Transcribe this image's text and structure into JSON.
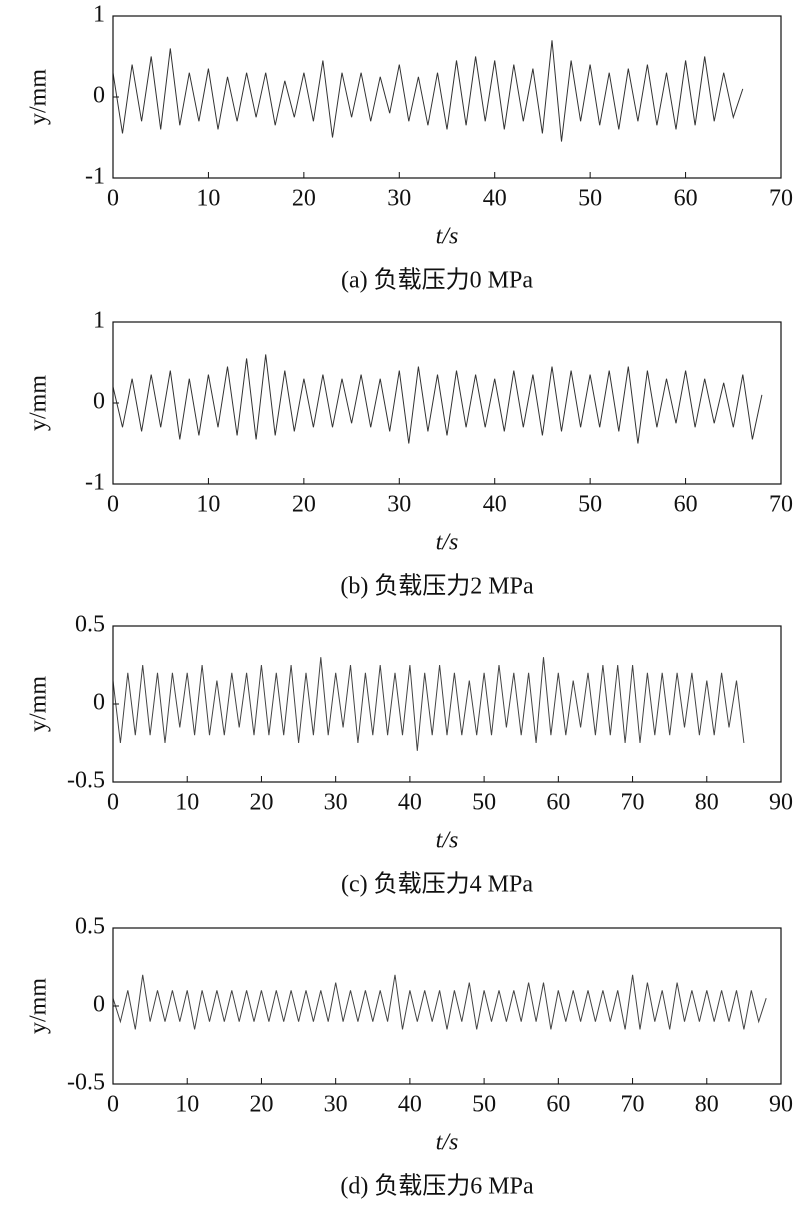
{
  "chart_data": [
    {
      "type": "line",
      "caption": "(a) 负载压力0 MPa",
      "xlabel": "t/s",
      "ylabel": "y/mm",
      "color": "#333333",
      "xlim": [
        0,
        70
      ],
      "xticks": [
        0,
        10,
        20,
        30,
        40,
        50,
        60,
        70
      ],
      "ylim": [
        -1,
        1
      ],
      "yticks": [
        -1,
        0,
        1
      ],
      "x": [
        0,
        1,
        2,
        3,
        4,
        5,
        6,
        7,
        8,
        9,
        10,
        11,
        12,
        13,
        14,
        15,
        16,
        17,
        18,
        19,
        20,
        21,
        22,
        23,
        24,
        25,
        26,
        27,
        28,
        29,
        30,
        31,
        32,
        33,
        34,
        35,
        36,
        37,
        38,
        39,
        40,
        41,
        42,
        43,
        44,
        45,
        46,
        47,
        48,
        49,
        50,
        51,
        52,
        53,
        54,
        55,
        56,
        57,
        58,
        59,
        60,
        61,
        62,
        63,
        64,
        65,
        66
      ],
      "values": [
        0.3,
        -0.45,
        0.4,
        -0.3,
        0.5,
        -0.4,
        0.6,
        -0.35,
        0.3,
        -0.3,
        0.35,
        -0.4,
        0.25,
        -0.3,
        0.3,
        -0.25,
        0.3,
        -0.35,
        0.2,
        -0.25,
        0.3,
        -0.3,
        0.45,
        -0.5,
        0.3,
        -0.25,
        0.3,
        -0.3,
        0.25,
        -0.2,
        0.4,
        -0.3,
        0.25,
        -0.35,
        0.3,
        -0.4,
        0.45,
        -0.35,
        0.5,
        -0.3,
        0.45,
        -0.4,
        0.4,
        -0.3,
        0.35,
        -0.45,
        0.7,
        -0.55,
        0.45,
        -0.3,
        0.4,
        -0.35,
        0.3,
        -0.4,
        0.35,
        -0.3,
        0.4,
        -0.35,
        0.3,
        -0.4,
        0.45,
        -0.35,
        0.5,
        -0.3,
        0.3,
        -0.25,
        0.1
      ]
    },
    {
      "type": "line",
      "caption": "(b) 负载压力2 MPa",
      "xlabel": "t/s",
      "ylabel": "y/mm",
      "color": "#333333",
      "xlim": [
        0,
        70
      ],
      "xticks": [
        0,
        10,
        20,
        30,
        40,
        50,
        60,
        70
      ],
      "ylim": [
        -1,
        1
      ],
      "yticks": [
        -1,
        0,
        1
      ],
      "x": [
        0,
        1,
        2,
        3,
        4,
        5,
        6,
        7,
        8,
        9,
        10,
        11,
        12,
        13,
        14,
        15,
        16,
        17,
        18,
        19,
        20,
        21,
        22,
        23,
        24,
        25,
        26,
        27,
        28,
        29,
        30,
        31,
        32,
        33,
        34,
        35,
        36,
        37,
        38,
        39,
        40,
        41,
        42,
        43,
        44,
        45,
        46,
        47,
        48,
        49,
        50,
        51,
        52,
        53,
        54,
        55,
        56,
        57,
        58,
        59,
        60,
        61,
        62,
        63,
        64,
        65,
        66,
        67,
        68
      ],
      "values": [
        0.2,
        -0.3,
        0.3,
        -0.35,
        0.35,
        -0.3,
        0.4,
        -0.45,
        0.3,
        -0.4,
        0.35,
        -0.3,
        0.45,
        -0.4,
        0.55,
        -0.45,
        0.6,
        -0.4,
        0.4,
        -0.35,
        0.3,
        -0.3,
        0.35,
        -0.3,
        0.3,
        -0.25,
        0.35,
        -0.3,
        0.3,
        -0.35,
        0.4,
        -0.5,
        0.45,
        -0.35,
        0.35,
        -0.4,
        0.4,
        -0.3,
        0.35,
        -0.3,
        0.3,
        -0.35,
        0.4,
        -0.3,
        0.35,
        -0.4,
        0.45,
        -0.35,
        0.4,
        -0.3,
        0.35,
        -0.3,
        0.4,
        -0.35,
        0.45,
        -0.5,
        0.4,
        -0.3,
        0.3,
        -0.25,
        0.4,
        -0.3,
        0.3,
        -0.25,
        0.25,
        -0.3,
        0.35,
        -0.45,
        0.1
      ]
    },
    {
      "type": "line",
      "caption": "(c) 负载压力4 MPa",
      "xlabel": "t/s",
      "ylabel": "y/mm",
      "color": "#444444",
      "xlim": [
        0,
        90
      ],
      "xticks": [
        0,
        10,
        20,
        30,
        40,
        50,
        60,
        70,
        80,
        90
      ],
      "ylim": [
        -0.5,
        0.5
      ],
      "yticks": [
        -0.5,
        0,
        0.5
      ],
      "x": [
        0,
        1,
        2,
        3,
        4,
        5,
        6,
        7,
        8,
        9,
        10,
        11,
        12,
        13,
        14,
        15,
        16,
        17,
        18,
        19,
        20,
        21,
        22,
        23,
        24,
        25,
        26,
        27,
        28,
        29,
        30,
        31,
        32,
        33,
        34,
        35,
        36,
        37,
        38,
        39,
        40,
        41,
        42,
        43,
        44,
        45,
        46,
        47,
        48,
        49,
        50,
        51,
        52,
        53,
        54,
        55,
        56,
        57,
        58,
        59,
        60,
        61,
        62,
        63,
        64,
        65,
        66,
        67,
        68,
        69,
        70,
        71,
        72,
        73,
        74,
        75,
        76,
        77,
        78,
        79,
        80,
        81,
        82,
        83,
        84,
        85
      ],
      "values": [
        0.15,
        -0.25,
        0.2,
        -0.2,
        0.25,
        -0.2,
        0.2,
        -0.25,
        0.2,
        -0.15,
        0.2,
        -0.2,
        0.25,
        -0.2,
        0.15,
        -0.2,
        0.2,
        -0.15,
        0.2,
        -0.2,
        0.25,
        -0.2,
        0.2,
        -0.2,
        0.25,
        -0.25,
        0.2,
        -0.2,
        0.3,
        -0.2,
        0.2,
        -0.15,
        0.25,
        -0.25,
        0.2,
        -0.2,
        0.25,
        -0.2,
        0.2,
        -0.2,
        0.25,
        -0.3,
        0.2,
        -0.2,
        0.25,
        -0.2,
        0.2,
        -0.2,
        0.15,
        -0.2,
        0.2,
        -0.2,
        0.25,
        -0.15,
        0.2,
        -0.2,
        0.2,
        -0.25,
        0.3,
        -0.2,
        0.2,
        -0.2,
        0.15,
        -0.15,
        0.2,
        -0.2,
        0.25,
        -0.2,
        0.25,
        -0.25,
        0.25,
        -0.25,
        0.2,
        -0.2,
        0.2,
        -0.2,
        0.2,
        -0.15,
        0.2,
        -0.2,
        0.15,
        -0.2,
        0.2,
        -0.15,
        0.15,
        -0.25
      ]
    },
    {
      "type": "line",
      "caption": "(d) 负载压力6 MPa",
      "xlabel": "t/s",
      "ylabel": "y/mm",
      "color": "#444444",
      "xlim": [
        0,
        90
      ],
      "xticks": [
        0,
        10,
        20,
        30,
        40,
        50,
        60,
        70,
        80,
        90
      ],
      "ylim": [
        -0.5,
        0.5
      ],
      "yticks": [
        -0.5,
        0,
        0.5
      ],
      "x": [
        0,
        1,
        2,
        3,
        4,
        5,
        6,
        7,
        8,
        9,
        10,
        11,
        12,
        13,
        14,
        15,
        16,
        17,
        18,
        19,
        20,
        21,
        22,
        23,
        24,
        25,
        26,
        27,
        28,
        29,
        30,
        31,
        32,
        33,
        34,
        35,
        36,
        37,
        38,
        39,
        40,
        41,
        42,
        43,
        44,
        45,
        46,
        47,
        48,
        49,
        50,
        51,
        52,
        53,
        54,
        55,
        56,
        57,
        58,
        59,
        60,
        61,
        62,
        63,
        64,
        65,
        66,
        67,
        68,
        69,
        70,
        71,
        72,
        73,
        74,
        75,
        76,
        77,
        78,
        79,
        80,
        81,
        82,
        83,
        84,
        85,
        86,
        87,
        88
      ],
      "values": [
        0.05,
        -0.1,
        0.1,
        -0.15,
        0.2,
        -0.1,
        0.1,
        -0.1,
        0.1,
        -0.1,
        0.1,
        -0.15,
        0.1,
        -0.1,
        0.1,
        -0.1,
        0.1,
        -0.1,
        0.1,
        -0.1,
        0.1,
        -0.1,
        0.1,
        -0.1,
        0.1,
        -0.1,
        0.1,
        -0.1,
        0.1,
        -0.1,
        0.15,
        -0.1,
        0.1,
        -0.1,
        0.1,
        -0.1,
        0.1,
        -0.1,
        0.2,
        -0.15,
        0.1,
        -0.1,
        0.1,
        -0.1,
        0.1,
        -0.15,
        0.1,
        -0.1,
        0.15,
        -0.15,
        0.1,
        -0.1,
        0.1,
        -0.1,
        0.1,
        -0.1,
        0.15,
        -0.1,
        0.15,
        -0.15,
        0.1,
        -0.1,
        0.1,
        -0.1,
        0.1,
        -0.1,
        0.1,
        -0.1,
        0.1,
        -0.15,
        0.2,
        -0.15,
        0.15,
        -0.1,
        0.1,
        -0.15,
        0.15,
        -0.1,
        0.1,
        -0.1,
        0.1,
        -0.1,
        0.1,
        -0.1,
        0.1,
        -0.15,
        0.1,
        -0.1,
        0.05
      ]
    }
  ]
}
